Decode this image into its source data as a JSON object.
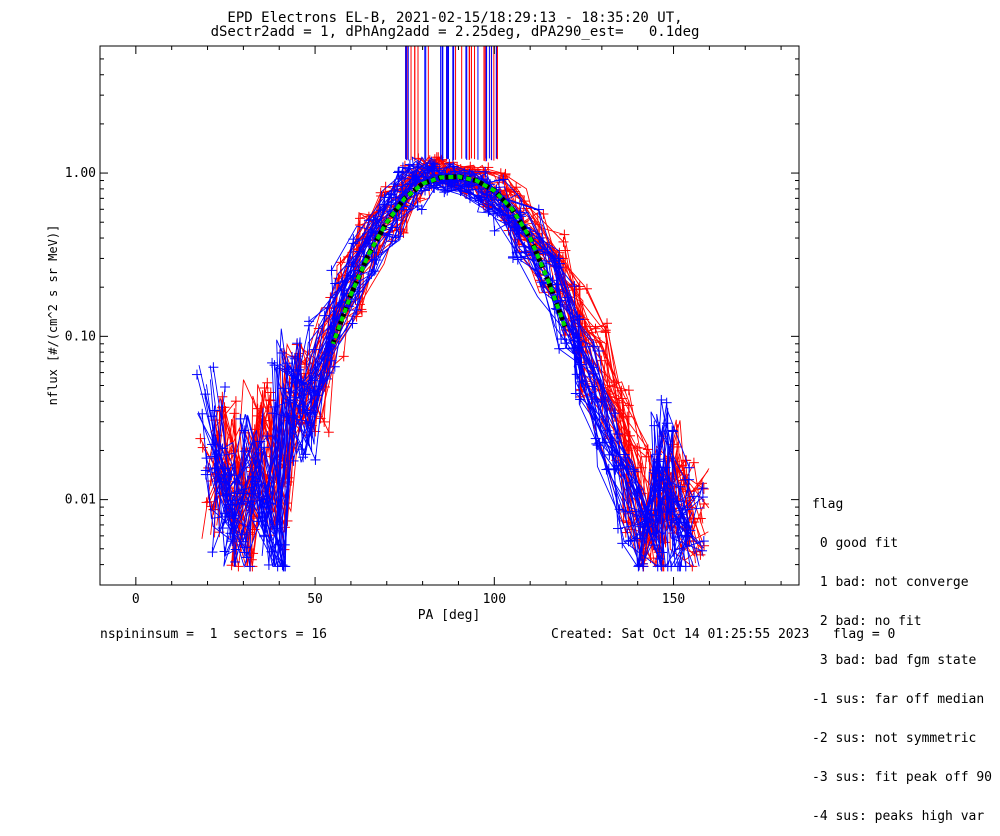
{
  "title": {
    "line1": "EPD Electrons EL-B, 2021-02-15/18:29:13 - 18:35:20 UT,",
    "line2": "dSectr2add = 1, dPhAng2add = 2.25deg, dPA290_est=   0.1deg"
  },
  "footer": {
    "left": "nspininsum =  1  sectors = 16",
    "right": "Created: Sat Oct 14 01:25:55 2023   flag = 0"
  },
  "legend": {
    "title": "flag",
    "entries": [
      " 0 good fit",
      " 1 bad: not converge",
      " 2 bad: no fit",
      " 3 bad: bad fgm state",
      "-1 sus: far off median",
      "-2 sus: not symmetric",
      "-3 sus: fit peak off 90",
      "-4 sus: peaks high var"
    ]
  },
  "colors": {
    "series_a": "#ff0000",
    "series_b": "#0000ff",
    "fit_median": "#000000",
    "fit_model": "#00dd00"
  },
  "chart_data": {
    "type": "scatter",
    "xlabel": "PA [deg]",
    "ylabel": "nflux [#/(cm^2 s sr MeV)]",
    "xlim": [
      -10,
      185
    ],
    "ylim": [
      0.003,
      6
    ],
    "yscale": "log",
    "xticks": [
      "0",
      "50",
      "100",
      "150"
    ],
    "yticks": [
      "0.01",
      "0.10",
      "1.00"
    ],
    "grid": false,
    "fit_curve": {
      "x": [
        55,
        60,
        65,
        70,
        75,
        80,
        85,
        90,
        95,
        100,
        105,
        110,
        115,
        120
      ],
      "y": [
        0.09,
        0.18,
        0.32,
        0.5,
        0.7,
        0.86,
        0.94,
        0.95,
        0.9,
        0.78,
        0.6,
        0.4,
        0.22,
        0.11
      ]
    },
    "series": [
      {
        "color": "red",
        "x": [
          22,
          26,
          30,
          34,
          40,
          44,
          50,
          55,
          60,
          66,
          72,
          78,
          82,
          86,
          90,
          95,
          100,
          105,
          110,
          116,
          122,
          128,
          134,
          140,
          144,
          148,
          152,
          156
        ],
        "y": [
          0.012,
          0.02,
          0.006,
          0.03,
          0.009,
          0.05,
          0.04,
          0.11,
          0.2,
          0.4,
          0.6,
          0.9,
          1.1,
          1.0,
          0.95,
          0.9,
          0.8,
          0.6,
          0.45,
          0.28,
          0.14,
          0.07,
          0.03,
          0.012,
          0.006,
          0.015,
          0.009,
          0.007
        ]
      },
      {
        "color": "blue",
        "x": [
          21,
          25,
          28,
          33,
          38,
          42,
          47,
          52,
          58,
          64,
          70,
          76,
          80,
          85,
          90,
          94,
          99,
          104,
          109,
          115,
          120,
          126,
          132,
          138,
          143,
          147,
          151,
          155
        ],
        "y": [
          0.03,
          0.01,
          0.006,
          0.02,
          0.005,
          0.06,
          0.03,
          0.08,
          0.16,
          0.35,
          0.55,
          0.8,
          1.0,
          0.92,
          0.88,
          0.84,
          0.72,
          0.58,
          0.42,
          0.25,
          0.13,
          0.06,
          0.025,
          0.01,
          0.005,
          0.02,
          0.008,
          0.006
        ]
      }
    ]
  }
}
